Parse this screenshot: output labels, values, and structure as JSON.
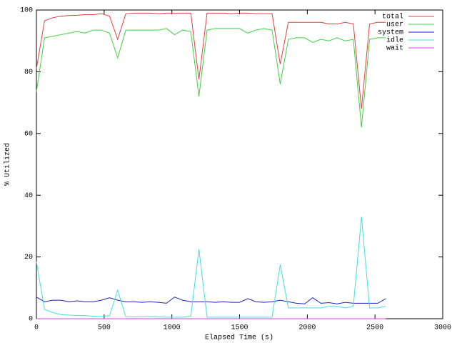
{
  "chart_data": {
    "type": "line",
    "xlabel": "Elapsed Time (s)",
    "ylabel": "% Utilized",
    "x": [
      0,
      60,
      120,
      180,
      240,
      300,
      360,
      420,
      480,
      540,
      600,
      660,
      720,
      780,
      840,
      900,
      960,
      1020,
      1080,
      1140,
      1200,
      1260,
      1320,
      1380,
      1440,
      1500,
      1560,
      1620,
      1680,
      1740,
      1800,
      1860,
      1920,
      1980,
      2040,
      2100,
      2160,
      2220,
      2280,
      2340,
      2400,
      2460,
      2520,
      2580
    ],
    "series": [
      {
        "name": "total",
        "color": "#e04040",
        "values": [
          81,
          96.5,
          97.5,
          98,
          98.2,
          98.3,
          98.5,
          98.5,
          98.8,
          98,
          90.5,
          98.8,
          99,
          99,
          99,
          98.8,
          99,
          99,
          99,
          99,
          77.5,
          99,
          99,
          99,
          98.8,
          99,
          99,
          98.8,
          98.8,
          98.8,
          82.5,
          96,
          96,
          96,
          96,
          96,
          95.5,
          95.5,
          96,
          95.5,
          68,
          95.5,
          96,
          96
        ]
      },
      {
        "name": "user",
        "color": "#40d040",
        "values": [
          73.5,
          91,
          91.5,
          92,
          92.5,
          93,
          92.5,
          93.5,
          93.5,
          92.5,
          84.5,
          93.5,
          93.5,
          93.5,
          93.5,
          93.5,
          94,
          92,
          93.5,
          93,
          72,
          93.5,
          94,
          94,
          94,
          94,
          92.5,
          93.5,
          94,
          93.5,
          76,
          90.5,
          91,
          91,
          89.5,
          90.5,
          90,
          91,
          90,
          90.5,
          62,
          90.5,
          91,
          91
        ]
      },
      {
        "name": "system",
        "color": "#2020c0",
        "values": [
          7,
          5.5,
          6,
          6,
          5.5,
          5.8,
          5.5,
          5.5,
          6,
          6.8,
          6,
          5.5,
          5.5,
          5.3,
          5.5,
          5.3,
          5,
          7,
          6,
          5.5,
          5.5,
          5.5,
          5.3,
          5.5,
          5.3,
          5.3,
          6.5,
          5.5,
          5.3,
          5.5,
          6,
          5.5,
          5,
          4.8,
          6.8,
          5,
          5.2,
          4.8,
          5.3,
          5,
          5,
          5,
          5,
          6.5
        ]
      },
      {
        "name": "idle",
        "color": "#40e0e0",
        "values": [
          18.5,
          3,
          2,
          1.3,
          1.2,
          1,
          1,
          0.8,
          0.7,
          1,
          9.2,
          0.6,
          0.6,
          0.6,
          0.7,
          0.6,
          0.5,
          0.5,
          0.5,
          0.8,
          22.5,
          0.5,
          0.5,
          0.5,
          0.5,
          0.5,
          0.5,
          0.5,
          0.5,
          0.5,
          17.5,
          3.5,
          3.5,
          3.5,
          3.5,
          3.5,
          4,
          4,
          3.5,
          4,
          33,
          3.5,
          3.5,
          4
        ]
      },
      {
        "name": "wait",
        "color": "#e040e0",
        "values": [
          0,
          0,
          0,
          0,
          0,
          0,
          0,
          0,
          0,
          0,
          0,
          0,
          0,
          0,
          0,
          0,
          0,
          0,
          0,
          0,
          0,
          0,
          0,
          0,
          0,
          0,
          0,
          0,
          0,
          0,
          0,
          0,
          0,
          0,
          0,
          0,
          0,
          0,
          0,
          0,
          0,
          0,
          0,
          0
        ]
      }
    ],
    "xlim": [
      0,
      3000
    ],
    "xticks": [
      0,
      500,
      1000,
      1500,
      2000,
      2500,
      3000
    ],
    "ylim": [
      0,
      100
    ],
    "yticks": [
      0,
      20,
      40,
      60,
      80,
      100
    ],
    "grid": false,
    "legend": "top-right"
  }
}
